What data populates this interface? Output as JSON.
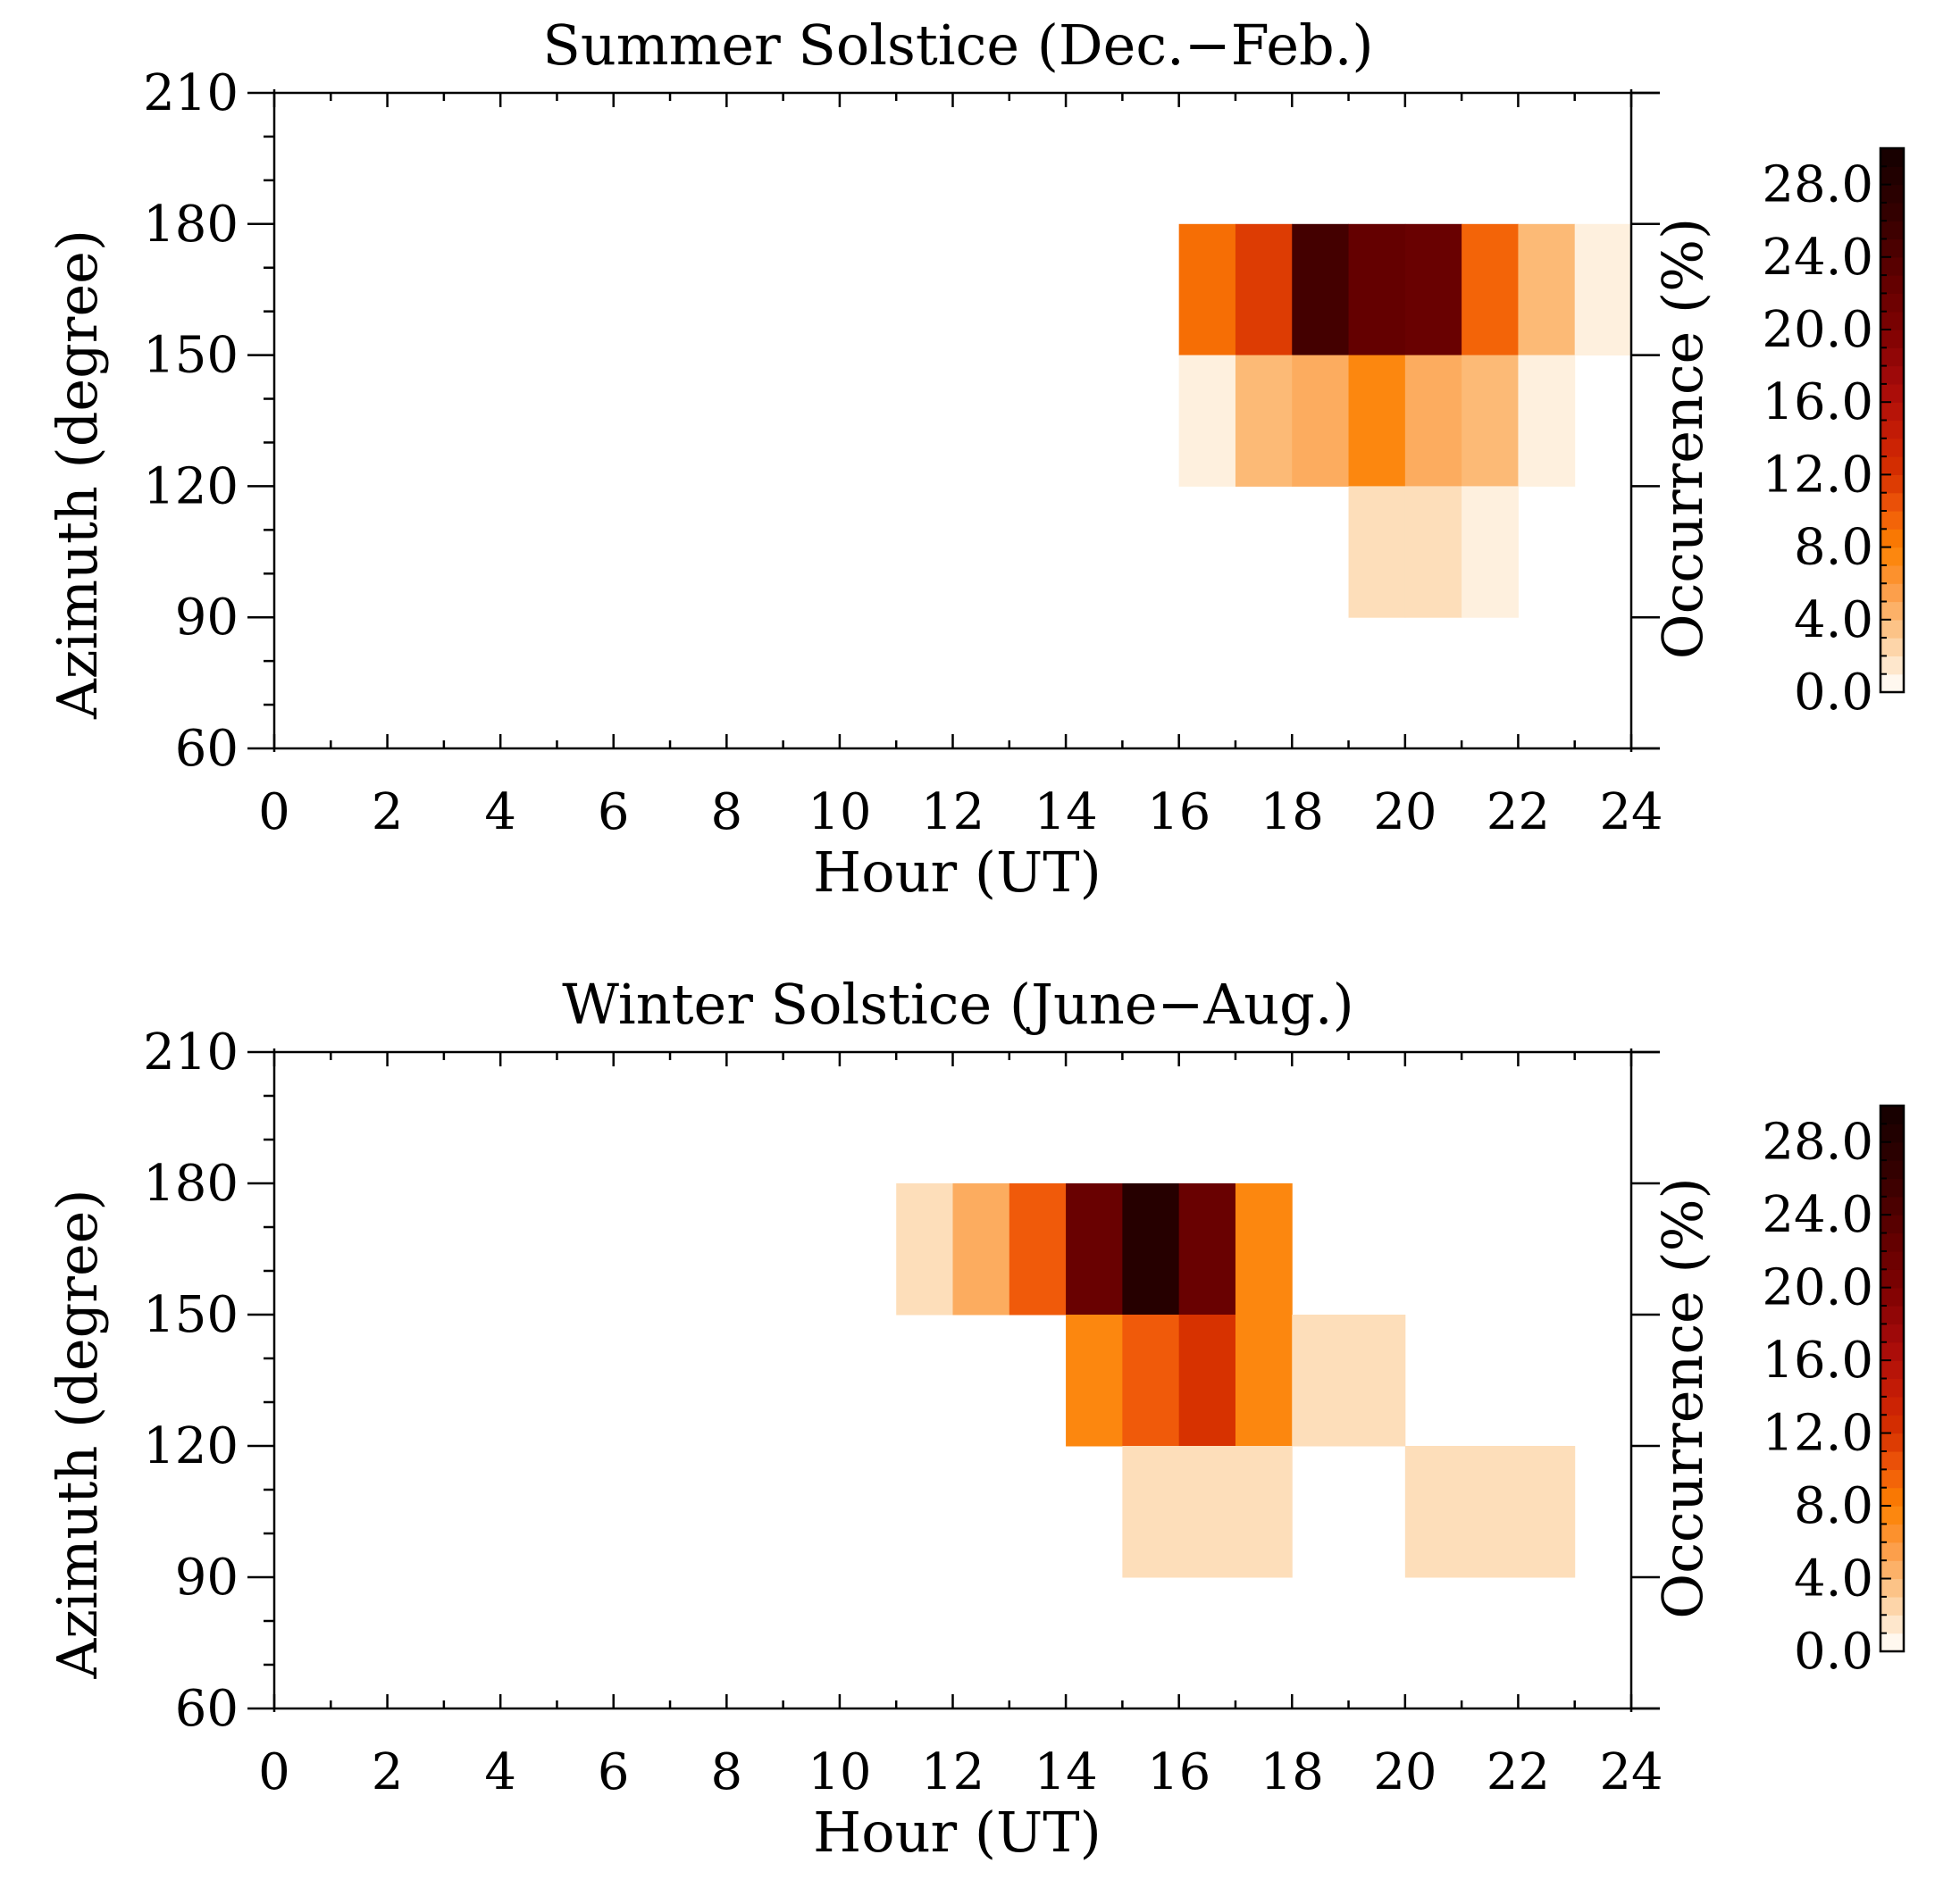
{
  "chart_data": [
    {
      "type": "heatmap",
      "title": "Summer Solstice (Dec.−Feb.)",
      "xlabel": "Hour (UT)",
      "ylabel": "Azimuth (degree)",
      "colorbar_label": "Occurrence (%)",
      "xlim": [
        0,
        24
      ],
      "ylim": [
        60,
        210
      ],
      "x_ticks": [
        "0",
        "2",
        "4",
        "6",
        "8",
        "10",
        "12",
        "14",
        "16",
        "18",
        "20",
        "22",
        "24"
      ],
      "y_ticks": [
        "60",
        "90",
        "120",
        "150",
        "180",
        "210"
      ],
      "colorbar_ticks": [
        "0.0",
        "4.0",
        "8.0",
        "12.0",
        "16.0",
        "20.0",
        "24.0",
        "28.0"
      ],
      "colorbar_range": [
        0,
        30
      ],
      "cell_size": {
        "hour": 1,
        "azimuth": 30
      },
      "cells": [
        {
          "hour": 16,
          "azimuth": 150,
          "value": 9.0
        },
        {
          "hour": 17,
          "azimuth": 150,
          "value": 11.5
        },
        {
          "hour": 18,
          "azimuth": 150,
          "value": 25.0
        },
        {
          "hour": 19,
          "azimuth": 150,
          "value": 22.5
        },
        {
          "hour": 20,
          "azimuth": 150,
          "value": 22.0
        },
        {
          "hour": 21,
          "azimuth": 150,
          "value": 9.5
        },
        {
          "hour": 22,
          "azimuth": 150,
          "value": 4.0
        },
        {
          "hour": 23,
          "azimuth": 150,
          "value": 1.0
        },
        {
          "hour": 16,
          "azimuth": 120,
          "value": 1.0
        },
        {
          "hour": 17,
          "azimuth": 120,
          "value": 4.0
        },
        {
          "hour": 18,
          "azimuth": 120,
          "value": 4.8
        },
        {
          "hour": 19,
          "azimuth": 120,
          "value": 7.5
        },
        {
          "hour": 20,
          "azimuth": 120,
          "value": 4.8
        },
        {
          "hour": 21,
          "azimuth": 120,
          "value": 4.0
        },
        {
          "hour": 22,
          "azimuth": 120,
          "value": 1.0
        },
        {
          "hour": 19,
          "azimuth": 90,
          "value": 2.0
        },
        {
          "hour": 20,
          "azimuth": 90,
          "value": 2.0
        },
        {
          "hour": 21,
          "azimuth": 90,
          "value": 1.0
        }
      ]
    },
    {
      "type": "heatmap",
      "title": "Winter Solstice (June−Aug.)",
      "xlabel": "Hour (UT)",
      "ylabel": "Azimuth (degree)",
      "colorbar_label": "Occurrence (%)",
      "xlim": [
        0,
        24
      ],
      "ylim": [
        60,
        210
      ],
      "x_ticks": [
        "0",
        "2",
        "4",
        "6",
        "8",
        "10",
        "12",
        "14",
        "16",
        "18",
        "20",
        "22",
        "24"
      ],
      "y_ticks": [
        "60",
        "90",
        "120",
        "150",
        "180",
        "210"
      ],
      "colorbar_ticks": [
        "0.0",
        "4.0",
        "8.0",
        "12.0",
        "16.0",
        "20.0",
        "24.0",
        "28.0"
      ],
      "colorbar_range": [
        0,
        30
      ],
      "cell_size": {
        "hour": 1,
        "azimuth": 30
      },
      "cells": [
        {
          "hour": 11,
          "azimuth": 150,
          "value": 2.0
        },
        {
          "hour": 12,
          "azimuth": 150,
          "value": 4.8
        },
        {
          "hour": 13,
          "azimuth": 150,
          "value": 10.0
        },
        {
          "hour": 14,
          "azimuth": 150,
          "value": 22.0
        },
        {
          "hour": 15,
          "azimuth": 150,
          "value": 28.0
        },
        {
          "hour": 16,
          "azimuth": 150,
          "value": 22.0
        },
        {
          "hour": 17,
          "azimuth": 150,
          "value": 7.5
        },
        {
          "hour": 14,
          "azimuth": 120,
          "value": 7.5
        },
        {
          "hour": 15,
          "azimuth": 120,
          "value": 10.0
        },
        {
          "hour": 16,
          "azimuth": 120,
          "value": 12.0
        },
        {
          "hour": 17,
          "azimuth": 120,
          "value": 7.5
        },
        {
          "hour": 18,
          "azimuth": 120,
          "value": 2.0
        },
        {
          "hour": 19,
          "azimuth": 120,
          "value": 2.0
        },
        {
          "hour": 15,
          "azimuth": 90,
          "value": 2.0
        },
        {
          "hour": 16,
          "azimuth": 90,
          "value": 2.0
        },
        {
          "hour": 17,
          "azimuth": 90,
          "value": 2.0
        },
        {
          "hour": 20,
          "azimuth": 90,
          "value": 2.0
        },
        {
          "hour": 21,
          "azimuth": 90,
          "value": 2.0
        },
        {
          "hour": 22,
          "azimuth": 90,
          "value": 2.0
        }
      ]
    }
  ]
}
